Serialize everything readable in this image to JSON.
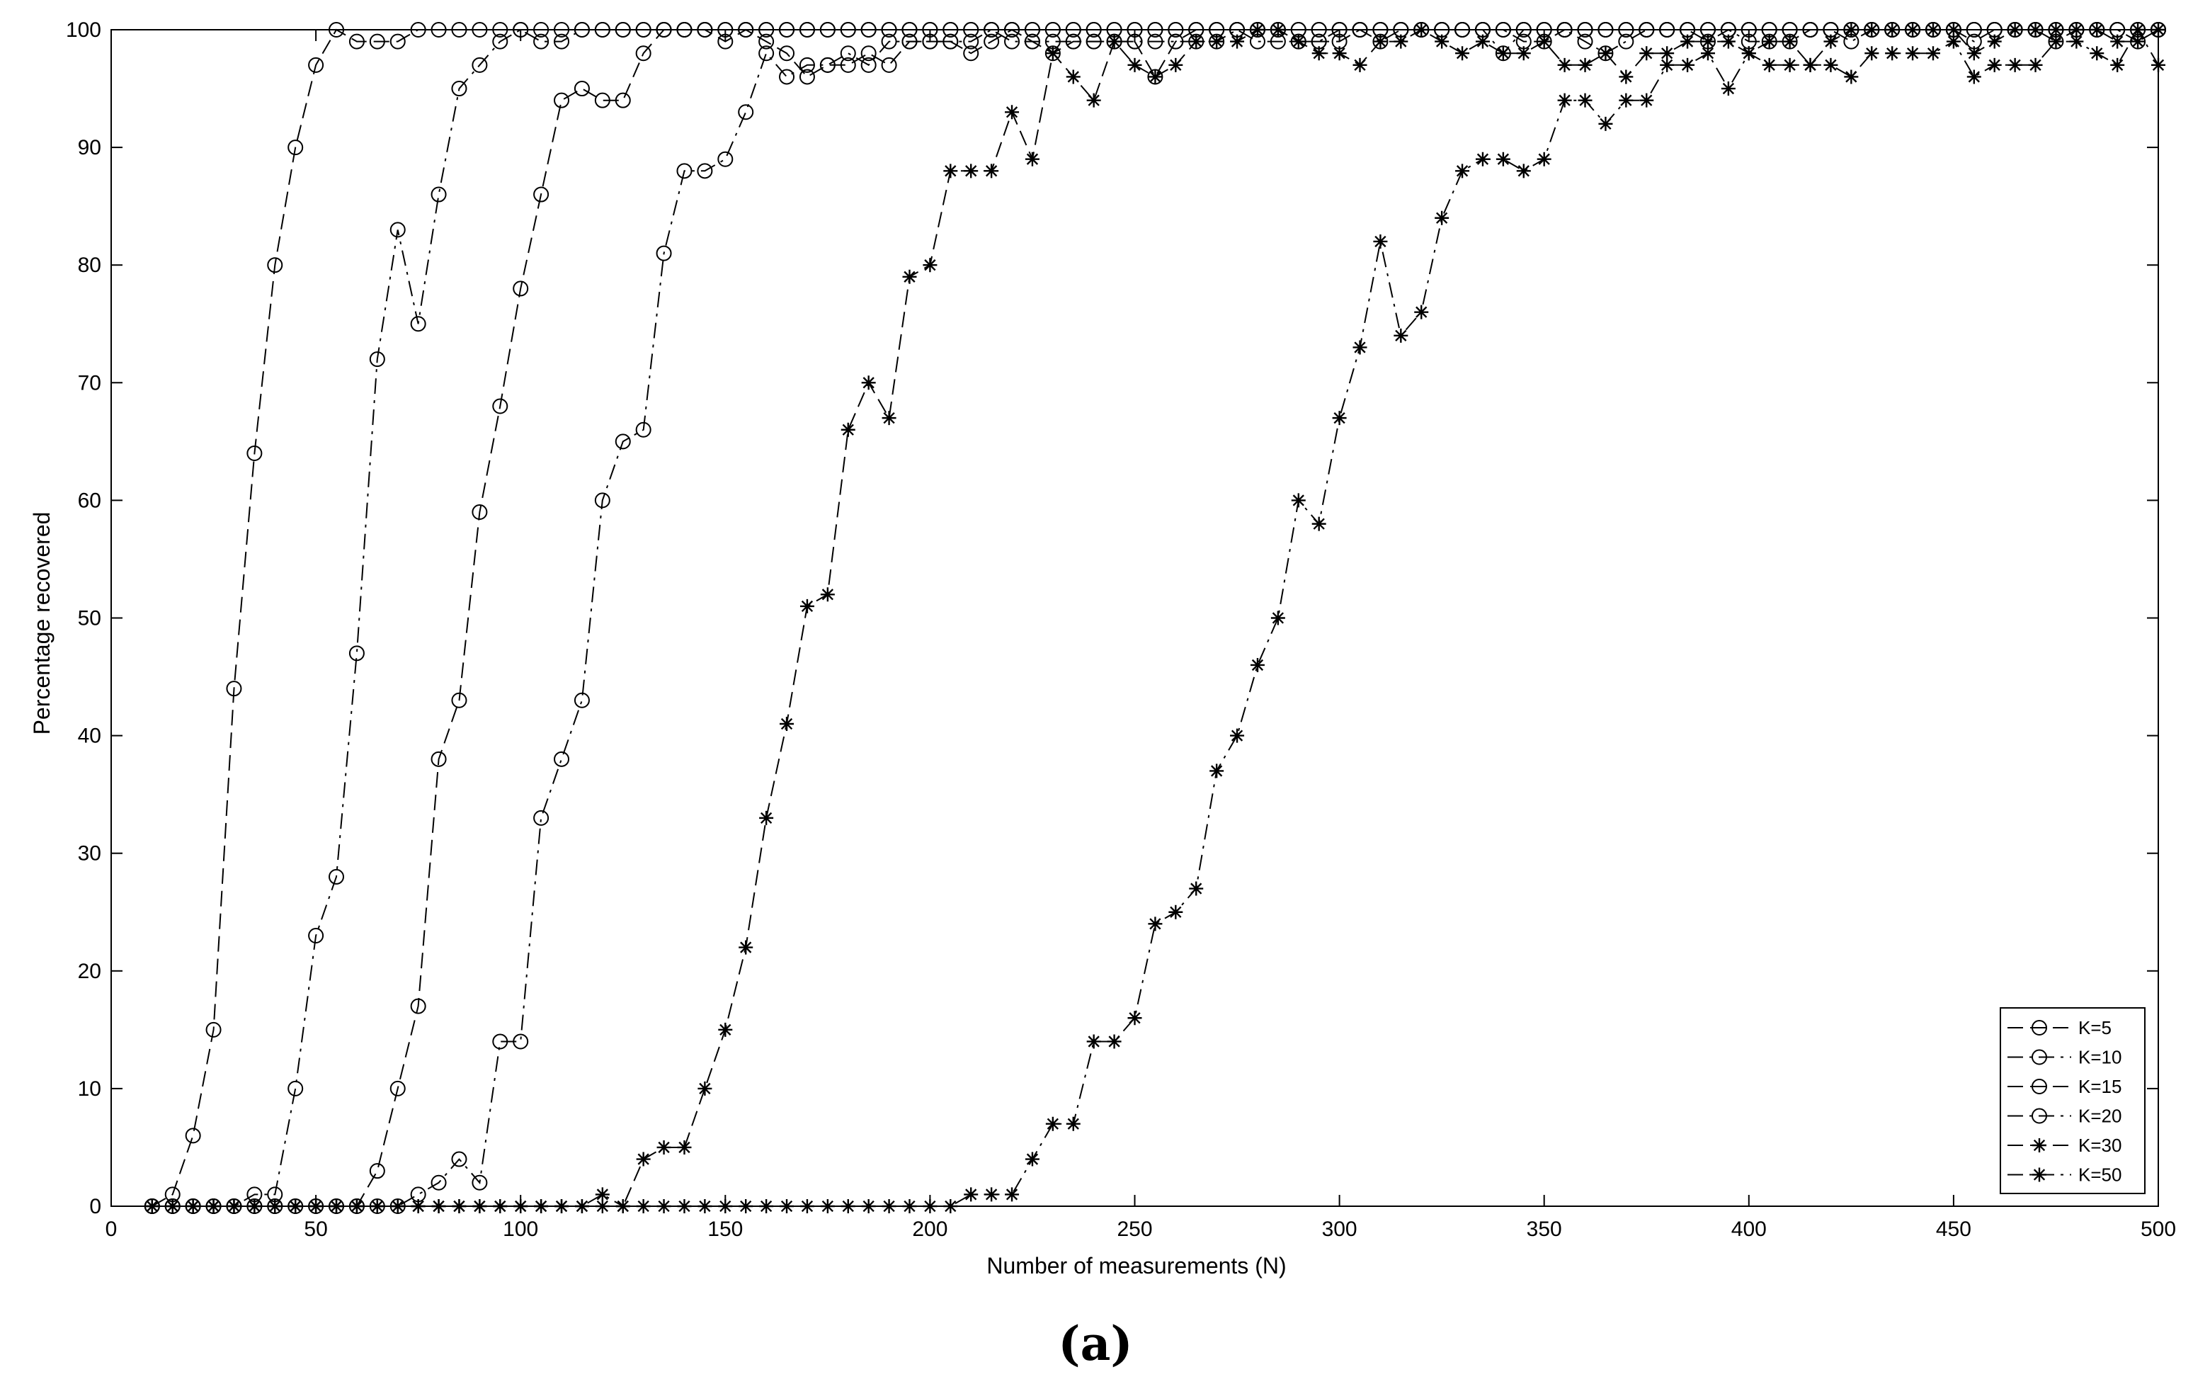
{
  "chart_data": {
    "type": "line",
    "caption": "(a)",
    "xlabel": "Number of measurements (N)",
    "ylabel": "Percentage recovered",
    "xlim": [
      0,
      500
    ],
    "ylim": [
      0,
      100
    ],
    "xticks": [
      0,
      50,
      100,
      150,
      200,
      250,
      300,
      350,
      400,
      450,
      500
    ],
    "yticks": [
      0,
      10,
      20,
      30,
      40,
      50,
      60,
      70,
      80,
      90,
      100
    ],
    "grid": false,
    "legend_position": "bottom-right",
    "x_start": 10,
    "x_step": 5,
    "series": [
      {
        "name": "K=5",
        "marker": "circle",
        "dash": "dashed",
        "values": [
          0,
          1,
          6,
          15,
          44,
          64,
          80,
          90,
          97,
          100,
          99,
          99,
          99,
          100,
          100,
          100,
          100,
          100,
          100,
          100,
          100,
          100,
          100,
          100,
          100,
          100,
          100,
          100,
          100,
          100,
          100,
          100,
          100,
          100,
          100,
          100,
          100,
          100,
          100,
          100,
          100,
          100,
          100,
          100,
          100,
          100,
          100,
          100,
          100,
          100,
          100,
          100,
          100,
          100,
          100,
          100,
          100,
          100,
          100,
          100,
          100,
          100,
          100,
          100,
          100,
          100,
          100,
          100,
          100,
          100,
          100,
          100,
          100,
          100,
          100,
          100,
          100,
          100,
          100,
          100,
          100,
          100,
          100,
          100,
          100,
          100,
          100,
          100,
          100,
          100,
          100,
          100,
          100,
          100,
          100,
          100,
          100,
          100,
          100
        ]
      },
      {
        "name": "K=10",
        "marker": "circle",
        "dash": "dashdot",
        "values": [
          0,
          0,
          0,
          0,
          0,
          1,
          1,
          10,
          23,
          28,
          47,
          72,
          83,
          75,
          86,
          95,
          97,
          99,
          100,
          99,
          99,
          100,
          100,
          100,
          100,
          100,
          100,
          100,
          100,
          100,
          100,
          100,
          100,
          100,
          100,
          100,
          100,
          100,
          100,
          100,
          100,
          100,
          100,
          100,
          100,
          100,
          100,
          100,
          100,
          100,
          100,
          100,
          100,
          100,
          100,
          100,
          100,
          100,
          100,
          100,
          100,
          100,
          100,
          100,
          100,
          100,
          100,
          100,
          100,
          100,
          100,
          100,
          100,
          100,
          100,
          100,
          100,
          100,
          100,
          100,
          100,
          100,
          100,
          100,
          100,
          100,
          100,
          100,
          100,
          100,
          100,
          100,
          100,
          100,
          100,
          100,
          100,
          100,
          100
        ]
      },
      {
        "name": "K=15",
        "marker": "circle",
        "dash": "dashed",
        "values": [
          0,
          0,
          0,
          0,
          0,
          0,
          0,
          0,
          0,
          0,
          0,
          3,
          10,
          17,
          38,
          43,
          59,
          68,
          78,
          86,
          94,
          95,
          94,
          94,
          98,
          100,
          100,
          100,
          99,
          100,
          99,
          98,
          96,
          97,
          97,
          98,
          97,
          99,
          99,
          99,
          98,
          99,
          100,
          99,
          98,
          99,
          99,
          99,
          99,
          96,
          99,
          100,
          100,
          100,
          100,
          100,
          99,
          99,
          99,
          100,
          100,
          100,
          100,
          100,
          100,
          100,
          100,
          99,
          99,
          100,
          100,
          100,
          100,
          100,
          100,
          100,
          100,
          100,
          100,
          100,
          100,
          100,
          100,
          100,
          100,
          100,
          100,
          100,
          100,
          100,
          100,
          100,
          100,
          100,
          100,
          100,
          100,
          100,
          100
        ]
      },
      {
        "name": "K=20",
        "marker": "circle",
        "dash": "dashdot",
        "values": [
          0,
          0,
          0,
          0,
          0,
          0,
          0,
          0,
          0,
          0,
          0,
          0,
          0,
          1,
          2,
          4,
          2,
          14,
          14,
          33,
          38,
          43,
          60,
          65,
          66,
          81,
          88,
          88,
          89,
          93,
          98,
          96,
          97,
          97,
          98,
          97,
          99,
          99,
          99,
          99,
          99,
          100,
          99,
          99,
          99,
          99,
          99,
          99,
          99,
          99,
          99,
          99,
          99,
          100,
          99,
          99,
          99,
          99,
          100,
          100,
          99,
          100,
          100,
          100,
          100,
          100,
          98,
          100,
          100,
          100,
          99,
          98,
          99,
          100,
          100,
          100,
          99,
          100,
          99,
          99,
          99,
          100,
          100,
          99,
          100,
          100,
          100,
          100,
          100,
          99,
          100,
          100,
          100,
          99,
          100,
          100,
          100,
          99,
          100
        ]
      },
      {
        "name": "K=30",
        "marker": "star",
        "dash": "dashed",
        "values": [
          0,
          0,
          0,
          0,
          0,
          0,
          0,
          0,
          0,
          0,
          0,
          0,
          0,
          0,
          0,
          0,
          0,
          0,
          0,
          0,
          0,
          0,
          0,
          0,
          4,
          5,
          5,
          10,
          15,
          22,
          33,
          41,
          51,
          52,
          66,
          70,
          67,
          79,
          80,
          88,
          88,
          88,
          93,
          89,
          98,
          96,
          94,
          99,
          97,
          96,
          97,
          99,
          99,
          99,
          100,
          100,
          99,
          98,
          98,
          97,
          99,
          99,
          100,
          99,
          98,
          99,
          98,
          98,
          99,
          97,
          97,
          98,
          96,
          98,
          98,
          99,
          99,
          99,
          98,
          99,
          99,
          97,
          99,
          100,
          100,
          100,
          100,
          100,
          100,
          98,
          99,
          100,
          100,
          100,
          100,
          100,
          99,
          99,
          100
        ]
      },
      {
        "name": "K=50",
        "marker": "star",
        "dash": "dashdot",
        "values": [
          0,
          0,
          0,
          0,
          0,
          0,
          0,
          0,
          0,
          0,
          0,
          0,
          0,
          0,
          0,
          0,
          0,
          0,
          0,
          0,
          0,
          0,
          1,
          0,
          0,
          0,
          0,
          0,
          0,
          0,
          0,
          0,
          0,
          0,
          0,
          0,
          0,
          0,
          0,
          0,
          1,
          1,
          1,
          4,
          7,
          7,
          14,
          14,
          16,
          24,
          25,
          27,
          37,
          40,
          46,
          50,
          60,
          58,
          67,
          73,
          82,
          74,
          76,
          84,
          88,
          89,
          89,
          88,
          89,
          94,
          94,
          92,
          94,
          94,
          97,
          97,
          98,
          95,
          98,
          97,
          97,
          97,
          97,
          96,
          98,
          98,
          98,
          98,
          99,
          96,
          97,
          97,
          97,
          99,
          99,
          98,
          97,
          100,
          97
        ]
      }
    ]
  }
}
